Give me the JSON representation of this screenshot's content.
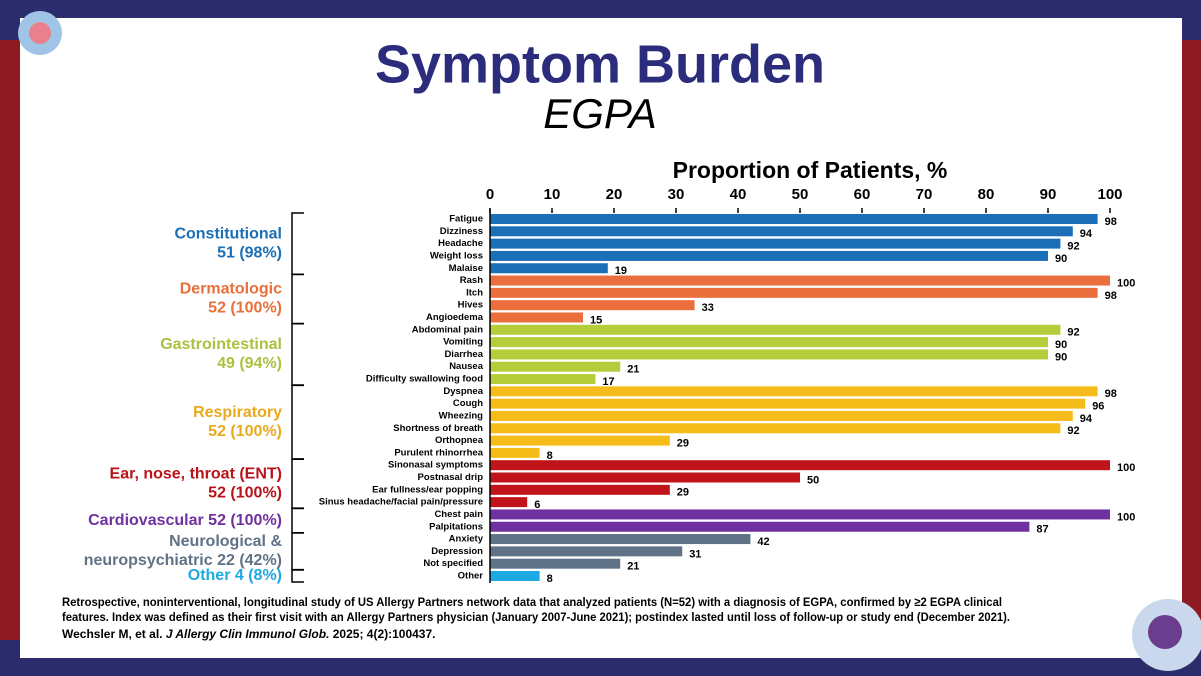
{
  "chart_data": {
    "type": "bar",
    "orientation": "horizontal",
    "title": "Symptom Burden",
    "subtitle": "EGPA",
    "x_label": "Proportion of Patients, %",
    "xlim": [
      0,
      100
    ],
    "xticks": [
      0,
      10,
      20,
      30,
      40,
      50,
      60,
      70,
      80,
      90,
      100
    ],
    "groups": [
      {
        "label": [
          "Constitutional",
          "51 (98%)"
        ],
        "color": "#1a6fb6",
        "label_color": "#1a6fb6",
        "categories": [
          "Fatigue",
          "Dizziness",
          "Headache",
          "Weight loss",
          "Malaise"
        ],
        "values": [
          98,
          94,
          92,
          90,
          19
        ]
      },
      {
        "label": [
          "Dermatologic",
          "52 (100%)"
        ],
        "color": "#ea6f3c",
        "label_color": "#e8703a",
        "categories": [
          "Rash",
          "Itch",
          "Hives",
          "Angioedema"
        ],
        "values": [
          100,
          98,
          33,
          15
        ]
      },
      {
        "label": [
          "Gastrointestinal",
          "49 (94%)"
        ],
        "color": "#b5cd3b",
        "label_color": "#a9c23f",
        "categories": [
          "Abdominal pain",
          "Vomiting",
          "Diarrhea",
          "Nausea",
          "Difficulty swallowing food"
        ],
        "values": [
          92,
          90,
          90,
          21,
          17
        ]
      },
      {
        "label": [
          "Respiratory",
          "52 (100%)"
        ],
        "color": "#f6bd1a",
        "label_color": "#e8a91b",
        "categories": [
          "Dyspnea",
          "Cough",
          "Wheezing",
          "Shortness of breath",
          "Orthopnea",
          "Purulent rhinorrhea"
        ],
        "values": [
          98,
          96,
          94,
          92,
          29,
          8
        ]
      },
      {
        "label": [
          "Ear, nose, throat (ENT)",
          "52 (100%)"
        ],
        "color": "#c0141a",
        "label_color": "#b8141a",
        "categories": [
          "Sinonasal symptoms",
          "Postnasal drip",
          "Ear fullness/ear popping",
          "Sinus headache/facial pain/pressure"
        ],
        "values": [
          100,
          50,
          29,
          6
        ]
      },
      {
        "label": [
          "Cardiovascular 52 (100%)"
        ],
        "color": "#7031a0",
        "label_color": "#7031a0",
        "categories": [
          "Chest pain",
          "Palpitations"
        ],
        "values": [
          100,
          87
        ]
      },
      {
        "label": [
          "Neurological &",
          "neuropsychiatric 22 (42%)"
        ],
        "color": "#5f7286",
        "label_color": "#5f7286",
        "categories": [
          "Anxiety",
          "Depression",
          "Not specified"
        ],
        "values": [
          42,
          31,
          21
        ]
      },
      {
        "label": [
          "Other 4 (8%)"
        ],
        "color": "#1da9e1",
        "label_color": "#1da9e1",
        "categories": [
          "Other"
        ],
        "values": [
          8
        ]
      }
    ],
    "footnote": [
      "Retrospective, noninterventional, longitudinal study of US Allergy Partners network data that analyzed patients (N=52) with a diagnosis of EGPA, confirmed by ≥2 EGPA clinical",
      "features. Index was defined as their first visit with an Allergy Partners physician (January 2007-June 2021); postindex lasted until loss of follow-up or study end (December 2021)."
    ],
    "citation": {
      "authors": "Wechsler M, et al.",
      "journal": "J Allergy Clin Immunol Glob.",
      "details": "2025; 4(2):100437."
    }
  }
}
